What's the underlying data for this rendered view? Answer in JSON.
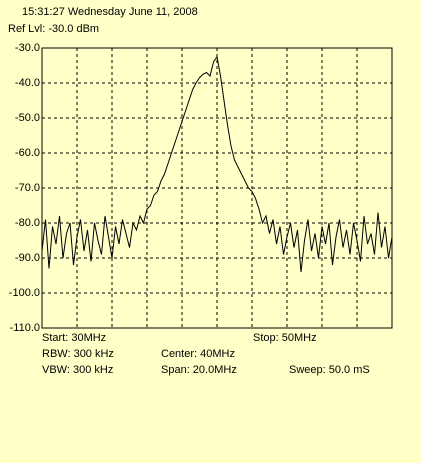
{
  "chart_data": {
    "type": "line",
    "timestamp": "15:31:27 Wednesday June 11, 2008",
    "ref_level": "Ref Lvl: -30.0 dBm",
    "start": "Start: 30MHz",
    "stop": "Stop: 50MHz",
    "rbw": "RBW: 300 kHz",
    "center": "Center: 40MHz",
    "vbw": "VBW: 300 kHz",
    "span": "Span: 20.0MHz",
    "sweep": "Sweep: 50.0 mS",
    "color": "#000000",
    "grid": true,
    "xlim": [
      30,
      50
    ],
    "xticks": [
      30,
      32,
      34,
      36,
      38,
      40,
      42,
      44,
      46,
      48,
      50
    ],
    "ylim": [
      -110,
      -30
    ],
    "yticks": [
      {
        "value": -30,
        "label": "-30.0"
      },
      {
        "value": -40,
        "label": "-40.0"
      },
      {
        "value": -50,
        "label": "-50.0"
      },
      {
        "value": -60,
        "label": "-60.0"
      },
      {
        "value": -70,
        "label": "-70.0"
      },
      {
        "value": -80,
        "label": "-80.0"
      },
      {
        "value": -90,
        "label": "-90.0"
      },
      {
        "value": -100,
        "label": "-100.0"
      },
      {
        "value": -110,
        "label": "-110.0"
      }
    ],
    "x": [
      30.0,
      30.2,
      30.4,
      30.6,
      30.8,
      31.0,
      31.2,
      31.4,
      31.6,
      31.8,
      32.0,
      32.2,
      32.4,
      32.6,
      32.8,
      33.0,
      33.2,
      33.4,
      33.6,
      33.8,
      34.0,
      34.2,
      34.4,
      34.6,
      34.8,
      35.0,
      35.2,
      35.4,
      35.6,
      35.8,
      36.0,
      36.2,
      36.4,
      36.6,
      36.8,
      37.0,
      37.2,
      37.4,
      37.6,
      37.8,
      38.0,
      38.2,
      38.4,
      38.6,
      38.8,
      39.0,
      39.2,
      39.4,
      39.6,
      39.8,
      40.0,
      40.2,
      40.4,
      40.6,
      40.8,
      41.0,
      41.2,
      41.4,
      41.6,
      41.8,
      42.0,
      42.2,
      42.4,
      42.6,
      42.8,
      43.0,
      43.2,
      43.4,
      43.6,
      43.8,
      44.0,
      44.2,
      44.4,
      44.6,
      44.8,
      45.0,
      45.2,
      45.4,
      45.6,
      45.8,
      46.0,
      46.2,
      46.4,
      46.6,
      46.8,
      47.0,
      47.2,
      47.4,
      47.6,
      47.8,
      48.0,
      48.2,
      48.4,
      48.6,
      48.8,
      49.0,
      49.2,
      49.4,
      49.6,
      49.8,
      50.0
    ],
    "values": [
      -88,
      -79,
      -93,
      -81,
      -86,
      -78,
      -90,
      -83,
      -80,
      -92,
      -84,
      -79,
      -88,
      -82,
      -91,
      -80,
      -85,
      -89,
      -78,
      -84,
      -90,
      -81,
      -86,
      -79,
      -83,
      -87,
      -80,
      -82,
      -78,
      -80,
      -76,
      -75,
      -72,
      -71,
      -68,
      -66,
      -63,
      -60,
      -57,
      -54,
      -51,
      -48,
      -45,
      -42,
      -40,
      -38.5,
      -37.5,
      -37,
      -38,
      -34,
      -32.5,
      -38,
      -45,
      -52,
      -58,
      -62,
      -64,
      -66,
      -68,
      -70,
      -71,
      -73,
      -76,
      -80,
      -78,
      -83,
      -79,
      -86,
      -81,
      -89,
      -84,
      -80,
      -87,
      -82,
      -94,
      -85,
      -79,
      -88,
      -83,
      -90,
      -81,
      -86,
      -80,
      -92,
      -84,
      -79,
      -87,
      -82,
      -89,
      -80,
      -85,
      -91,
      -78,
      -86,
      -83,
      -89,
      -77,
      -87,
      -81,
      -90,
      -84
    ]
  }
}
